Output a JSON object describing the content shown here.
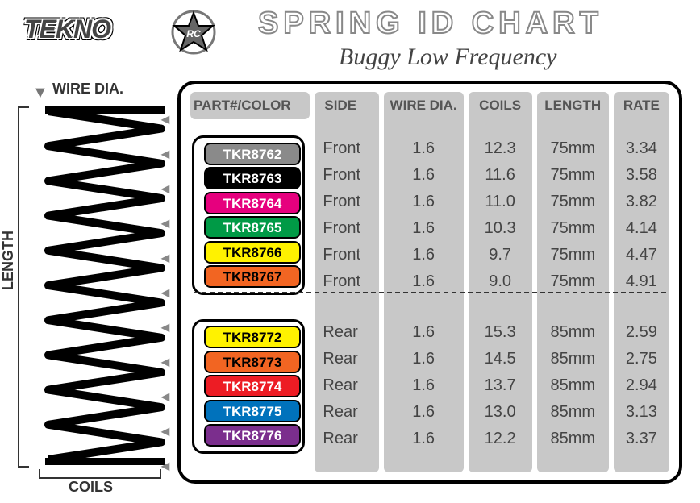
{
  "header": {
    "brand": "TEKNO",
    "title": "SPRING ID CHART",
    "subtitle": "Buggy Low Frequency"
  },
  "diagram": {
    "wire_label": "WIRE DIA.",
    "length_label": "LENGTH",
    "coils_label": "COILS",
    "coil_count": 10,
    "spring_width": 150,
    "spring_height": 440,
    "stroke_width": 10,
    "stroke_color": "#000000"
  },
  "table": {
    "columns": [
      {
        "key": "part",
        "label": "PART#/COLOR",
        "width": 150
      },
      {
        "key": "side",
        "label": "SIDE",
        "width": 80
      },
      {
        "key": "wire",
        "label": "WIRE DIA.",
        "width": 100
      },
      {
        "key": "coils",
        "label": "COILS",
        "width": 80
      },
      {
        "key": "length",
        "label": "LENGTH",
        "width": 90
      },
      {
        "key": "rate",
        "label": "RATE",
        "width": 70
      }
    ],
    "column_bg": "#c8c8c8",
    "groups": [
      {
        "rows": [
          {
            "part": "TKR8762",
            "bg": "#8a8a8a",
            "fg": "#ffffff",
            "side": "Front",
            "wire": "1.6",
            "coils": "12.3",
            "length": "75mm",
            "rate": "3.34"
          },
          {
            "part": "TKR8763",
            "bg": "#000000",
            "fg": "#ffffff",
            "side": "Front",
            "wire": "1.6",
            "coils": "11.6",
            "length": "75mm",
            "rate": "3.58"
          },
          {
            "part": "TKR8764",
            "bg": "#e6007e",
            "fg": "#ffffff",
            "side": "Front",
            "wire": "1.6",
            "coils": "11.0",
            "length": "75mm",
            "rate": "3.82"
          },
          {
            "part": "TKR8765",
            "bg": "#009a46",
            "fg": "#ffffff",
            "side": "Front",
            "wire": "1.6",
            "coils": "10.3",
            "length": "75mm",
            "rate": "4.14"
          },
          {
            "part": "TKR8766",
            "bg": "#fff200",
            "fg": "#000000",
            "side": "Front",
            "wire": "1.6",
            "coils": "9.7",
            "length": "75mm",
            "rate": "4.47"
          },
          {
            "part": "TKR8767",
            "bg": "#f26522",
            "fg": "#000000",
            "side": "Front",
            "wire": "1.6",
            "coils": "9.0",
            "length": "75mm",
            "rate": "4.91"
          }
        ]
      },
      {
        "rows": [
          {
            "part": "TKR8772",
            "bg": "#fff200",
            "fg": "#000000",
            "side": "Rear",
            "wire": "1.6",
            "coils": "15.3",
            "length": "85mm",
            "rate": "2.59"
          },
          {
            "part": "TKR8773",
            "bg": "#f26522",
            "fg": "#000000",
            "side": "Rear",
            "wire": "1.6",
            "coils": "14.5",
            "length": "85mm",
            "rate": "2.75"
          },
          {
            "part": "TKR8774",
            "bg": "#ed1c24",
            "fg": "#ffffff",
            "side": "Rear",
            "wire": "1.6",
            "coils": "13.7",
            "length": "85mm",
            "rate": "2.94"
          },
          {
            "part": "TKR8775",
            "bg": "#0072bc",
            "fg": "#ffffff",
            "side": "Rear",
            "wire": "1.6",
            "coils": "13.0",
            "length": "85mm",
            "rate": "3.13"
          },
          {
            "part": "TKR8776",
            "bg": "#7b2e8d",
            "fg": "#ffffff",
            "side": "Rear",
            "wire": "1.6",
            "coils": "12.2",
            "length": "85mm",
            "rate": "3.37"
          }
        ]
      }
    ]
  }
}
